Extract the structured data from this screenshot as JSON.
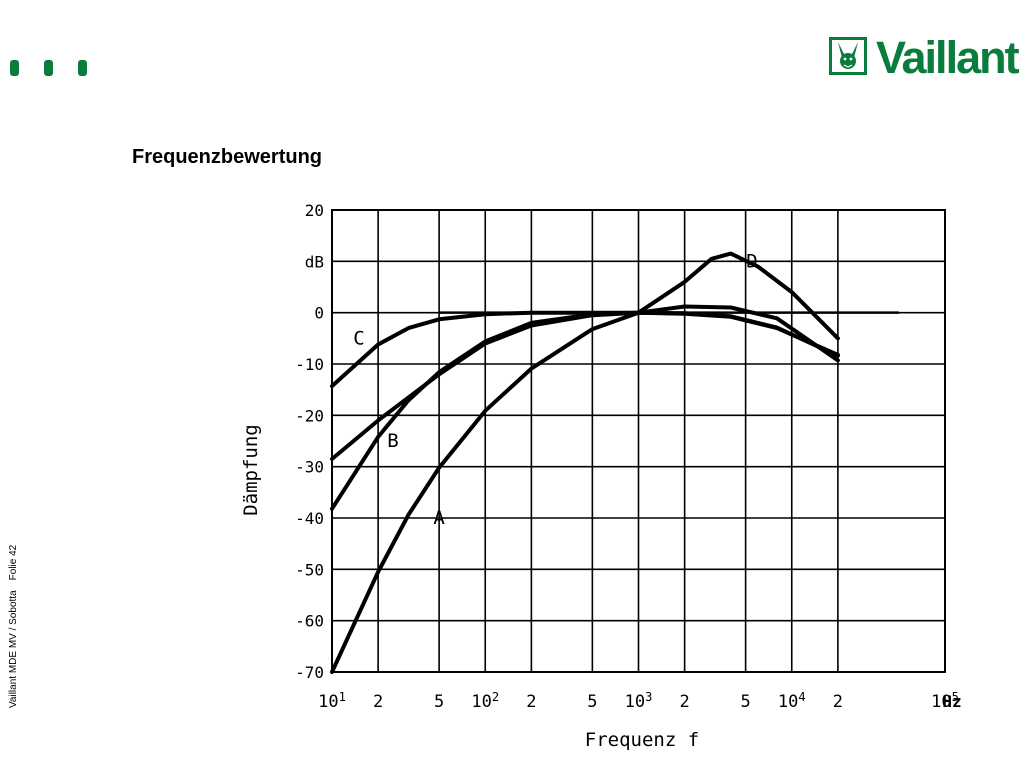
{
  "page": {
    "title": "Frequenzbewertung",
    "brand": "Vaillant",
    "footer": {
      "presentation": "Vaillant MDE MV / Sobotta",
      "slide": "Folie  42"
    }
  },
  "colors": {
    "brand_green": "#0a7d3e",
    "line": "#000000",
    "grid": "#000000"
  },
  "icons": {
    "logo": "hare-logo-icon",
    "accent": "green-dots"
  },
  "chart_data": {
    "type": "line",
    "title": "",
    "xlabel": "Frequenz f",
    "ylabel": "Dämpfung",
    "yunit": "dB",
    "xunit": "Hz",
    "xscale": "log",
    "xlim": [
      10,
      100000
    ],
    "ylim": [
      -70,
      20
    ],
    "grid": true,
    "yticks": [
      20,
      10,
      0,
      -10,
      -20,
      -30,
      -40,
      -50,
      -60,
      -70
    ],
    "ytick_labels": [
      "20",
      "dB",
      "0",
      "-10",
      "-20",
      "-30",
      "-40",
      "-50",
      "-60",
      "-70"
    ],
    "xticks": [
      {
        "value": 10,
        "base": "10",
        "exp": "1"
      },
      {
        "value": 20,
        "base": "2",
        "exp": ""
      },
      {
        "value": 50,
        "base": "5",
        "exp": ""
      },
      {
        "value": 100,
        "base": "10",
        "exp": "2"
      },
      {
        "value": 200,
        "base": "2",
        "exp": ""
      },
      {
        "value": 500,
        "base": "5",
        "exp": ""
      },
      {
        "value": 1000,
        "base": "10",
        "exp": "3"
      },
      {
        "value": 2000,
        "base": "2",
        "exp": ""
      },
      {
        "value": 5000,
        "base": "5",
        "exp": ""
      },
      {
        "value": 10000,
        "base": "10",
        "exp": "4"
      },
      {
        "value": 20000,
        "base": "2",
        "exp": ""
      },
      {
        "value": 100000,
        "base": "10",
        "exp": "5"
      }
    ],
    "series": [
      {
        "name": "A",
        "x": [
          10,
          20,
          31.5,
          50,
          100,
          200,
          500,
          1000,
          2000,
          4000,
          8000,
          20000
        ],
        "y": [
          -70,
          -50.5,
          -39.4,
          -30.2,
          -19.1,
          -10.9,
          -3.2,
          0,
          1.2,
          1.0,
          -1.1,
          -9.3
        ],
        "label_at": [
          50,
          -40
        ]
      },
      {
        "name": "B",
        "x": [
          10,
          20,
          31.5,
          50,
          100,
          200,
          500,
          1000,
          2000,
          4000,
          8000,
          20000
        ],
        "y": [
          -38.2,
          -24.2,
          -17.1,
          -11.6,
          -5.6,
          -2.0,
          -0.3,
          0,
          -0.1,
          -0.7,
          -2.9,
          -8.4
        ],
        "label_at": [
          25,
          -25
        ]
      },
      {
        "name": "C",
        "x": [
          10,
          20,
          31.5,
          50,
          100,
          200,
          500,
          1000,
          2000,
          4000,
          8000,
          20000
        ],
        "y": [
          -14.3,
          -6.2,
          -3.0,
          -1.3,
          -0.3,
          0,
          0,
          0,
          -0.2,
          -0.8,
          -3.0,
          -8.2
        ],
        "label_at": [
          15,
          -5
        ]
      },
      {
        "name": "D",
        "x": [
          10,
          20,
          50,
          100,
          200,
          500,
          1000,
          2000,
          3000,
          4000,
          6000,
          10000,
          20000
        ],
        "y": [
          -28.5,
          -21,
          -12,
          -6,
          -2.5,
          -0.5,
          0,
          6,
          10.5,
          11.5,
          9,
          4,
          -5
        ],
        "label_at": [
          5500,
          10
        ]
      }
    ],
    "extra_lines": [
      {
        "name": "reference-0dB",
        "x": [
          50,
          50000
        ],
        "y": [
          0,
          0
        ]
      }
    ]
  }
}
